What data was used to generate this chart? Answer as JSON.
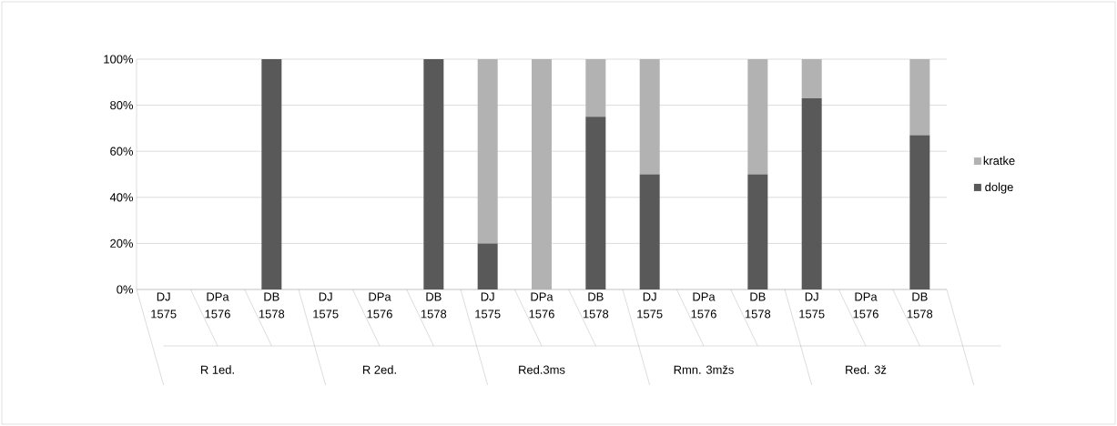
{
  "chart_data": {
    "type": "bar",
    "stacked": true,
    "categories": [
      "DJ 1575",
      "DPa 1576",
      "DB 1578",
      "DJ 1575",
      "DPa 1576",
      "DB 1578",
      "DJ 1575",
      "DPa 1576",
      "DB 1578",
      "DJ 1575",
      "DPa 1576",
      "DB 1578",
      "DJ 1575",
      "DPa 1576",
      "DB 1578"
    ],
    "series": [
      {
        "name": "dolge",
        "color": "#595959",
        "values": [
          0,
          0,
          100,
          0,
          0,
          100,
          20,
          0,
          75,
          50,
          0,
          50,
          83,
          0,
          67
        ]
      },
      {
        "name": "kratke",
        "color": "#b2b2b2",
        "values": [
          0,
          0,
          0,
          0,
          0,
          0,
          80,
          100,
          25,
          50,
          0,
          50,
          17,
          0,
          33
        ]
      }
    ],
    "ylim": [
      0,
      100
    ],
    "yticks": [
      {
        "value": 0,
        "label": "0%"
      },
      {
        "value": 20,
        "label": "20%"
      },
      {
        "value": 40,
        "label": "40%"
      },
      {
        "value": 60,
        "label": "60%"
      },
      {
        "value": 80,
        "label": "80%"
      },
      {
        "value": 100,
        "label": "100%"
      }
    ],
    "grid": "y",
    "legend": "right",
    "annotations": [
      "R 1ed.",
      "R 2ed.",
      "Red.3ms",
      "Rmn. 3mžs",
      "Red. 3ž"
    ]
  }
}
